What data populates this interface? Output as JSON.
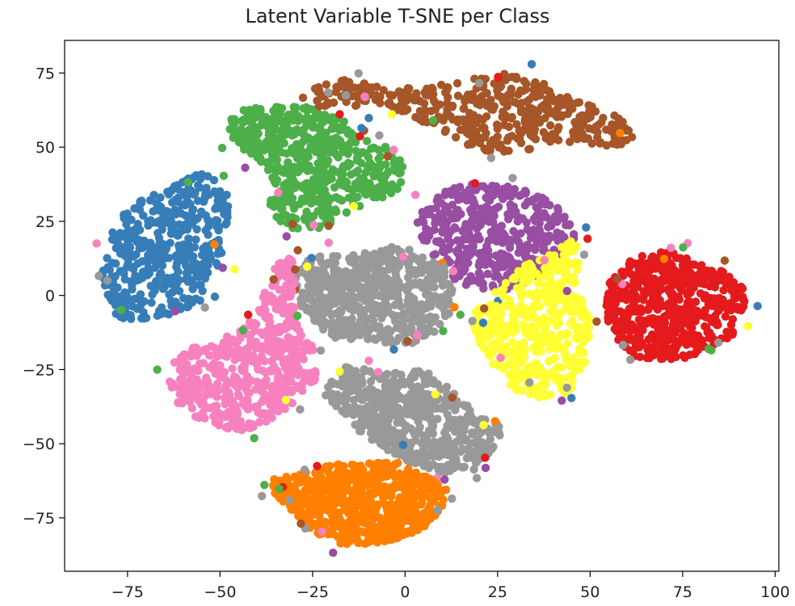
{
  "chart_data": {
    "type": "scatter",
    "title": "Latent Variable T-SNE per Class",
    "xlabel": "",
    "ylabel": "",
    "xlim": [
      -92,
      101
    ],
    "ylim": [
      -93,
      86
    ],
    "xticks": [
      -75,
      -50,
      -25,
      0,
      25,
      50,
      75,
      100
    ],
    "xtick_labels": [
      "−75",
      "−50",
      "−25",
      "0",
      "25",
      "50",
      "75",
      "100"
    ],
    "yticks": [
      75,
      50,
      25,
      0,
      -25,
      -50,
      -75
    ],
    "ytick_labels": [
      "75",
      "50",
      "25",
      "0",
      "−25",
      "−50",
      "−75"
    ],
    "grid": false,
    "legend": "none",
    "clusters": [
      {
        "color": "#377eb8",
        "points_approx": 450,
        "polygon": [
          [
            -79,
            -6
          ],
          [
            -82,
            6
          ],
          [
            -80,
            20
          ],
          [
            -76,
            29
          ],
          [
            -70,
            33
          ],
          [
            -64,
            36
          ],
          [
            -58,
            40
          ],
          [
            -53,
            43
          ],
          [
            -50,
            36
          ],
          [
            -47,
            29
          ],
          [
            -49,
            20
          ],
          [
            -50,
            10
          ],
          [
            -54,
            3
          ],
          [
            -57,
            -3
          ],
          [
            -62,
            -6
          ],
          [
            -70,
            -8
          ],
          [
            -76,
            -8
          ]
        ]
      },
      {
        "color": "#4daf4a",
        "points_approx": 550,
        "polygon": [
          [
            -48,
            58
          ],
          [
            -44,
            64
          ],
          [
            -37,
            63
          ],
          [
            -30,
            65
          ],
          [
            -23,
            63
          ],
          [
            -17,
            60
          ],
          [
            -13,
            53
          ],
          [
            -6,
            51
          ],
          [
            -1,
            46
          ],
          [
            0,
            38
          ],
          [
            -4,
            34
          ],
          [
            -12,
            30
          ],
          [
            -20,
            24
          ],
          [
            -27,
            21
          ],
          [
            -33,
            24
          ],
          [
            -37,
            28
          ],
          [
            -36,
            38
          ],
          [
            -40,
            46
          ],
          [
            -46,
            51
          ]
        ]
      },
      {
        "color": "#a65628",
        "points_approx": 450,
        "polygon": [
          [
            -24,
            70
          ],
          [
            -17,
            73
          ],
          [
            -9,
            71
          ],
          [
            0,
            70
          ],
          [
            8,
            72
          ],
          [
            18,
            73
          ],
          [
            27,
            75
          ],
          [
            34,
            74
          ],
          [
            42,
            68
          ],
          [
            50,
            64
          ],
          [
            58,
            60
          ],
          [
            62,
            54
          ],
          [
            58,
            50
          ],
          [
            50,
            51
          ],
          [
            42,
            52
          ],
          [
            33,
            49
          ],
          [
            24,
            48
          ],
          [
            16,
            51
          ],
          [
            8,
            57
          ],
          [
            0,
            61
          ],
          [
            -7,
            63
          ],
          [
            -15,
            64
          ],
          [
            -23,
            63
          ],
          [
            -28,
            67
          ]
        ]
      },
      {
        "color": "#984ea3",
        "points_approx": 450,
        "polygon": [
          [
            3,
            25
          ],
          [
            6,
            31
          ],
          [
            12,
            36
          ],
          [
            20,
            38
          ],
          [
            28,
            37
          ],
          [
            36,
            34
          ],
          [
            44,
            28
          ],
          [
            46,
            20
          ],
          [
            42,
            12
          ],
          [
            36,
            6
          ],
          [
            29,
            2
          ],
          [
            22,
            2
          ],
          [
            15,
            4
          ],
          [
            10,
            9
          ],
          [
            6,
            15
          ]
        ]
      },
      {
        "color": "#ffff33",
        "points_approx": 450,
        "polygon": [
          [
            22,
            -2
          ],
          [
            26,
            4
          ],
          [
            33,
            11
          ],
          [
            40,
            15
          ],
          [
            46,
            19
          ],
          [
            48,
            12
          ],
          [
            46,
            3
          ],
          [
            50,
            -6
          ],
          [
            50,
            -16
          ],
          [
            48,
            -26
          ],
          [
            44,
            -33
          ],
          [
            38,
            -35
          ],
          [
            31,
            -33
          ],
          [
            26,
            -28
          ],
          [
            22,
            -20
          ],
          [
            18,
            -12
          ],
          [
            19,
            -5
          ]
        ]
      },
      {
        "color": "#e41a1c",
        "points_approx": 550,
        "polygon": [
          [
            55,
            4
          ],
          [
            60,
            12
          ],
          [
            68,
            15
          ],
          [
            74,
            14
          ],
          [
            80,
            11
          ],
          [
            86,
            8
          ],
          [
            91,
            4
          ],
          [
            92,
            -4
          ],
          [
            90,
            -12
          ],
          [
            84,
            -18
          ],
          [
            76,
            -21
          ],
          [
            68,
            -22
          ],
          [
            60,
            -20
          ],
          [
            56,
            -13
          ],
          [
            54,
            -5
          ]
        ]
      },
      {
        "color": "#999999",
        "points_approx": 600,
        "polygon": [
          [
            -33,
            6
          ],
          [
            -27,
            12
          ],
          [
            -20,
            14
          ],
          [
            -12,
            14
          ],
          [
            -4,
            17
          ],
          [
            3,
            15
          ],
          [
            10,
            11
          ],
          [
            13,
            4
          ],
          [
            12,
            -6
          ],
          [
            8,
            -12
          ],
          [
            3,
            -16
          ],
          [
            -4,
            -16
          ],
          [
            -12,
            -16
          ],
          [
            -20,
            -14
          ],
          [
            -26,
            -8
          ],
          [
            -30,
            0
          ]
        ]
      },
      {
        "color": "#999999",
        "points_approx": 550,
        "polygon": [
          [
            -20,
            -28
          ],
          [
            -16,
            -24
          ],
          [
            -8,
            -25
          ],
          [
            0,
            -26
          ],
          [
            6,
            -25
          ],
          [
            12,
            -31
          ],
          [
            16,
            -36
          ],
          [
            22,
            -42
          ],
          [
            27,
            -44
          ],
          [
            24,
            -52
          ],
          [
            18,
            -58
          ],
          [
            10,
            -60
          ],
          [
            4,
            -58
          ],
          [
            -4,
            -53
          ],
          [
            -12,
            -47
          ],
          [
            -16,
            -40
          ],
          [
            -22,
            -34
          ]
        ]
      },
      {
        "color": "#f781bf",
        "points_approx": 550,
        "polygon": [
          [
            -62,
            -20
          ],
          [
            -58,
            -17
          ],
          [
            -50,
            -15
          ],
          [
            -44,
            -11
          ],
          [
            -40,
            -6
          ],
          [
            -38,
            2
          ],
          [
            -35,
            10
          ],
          [
            -32,
            16
          ],
          [
            -29,
            10
          ],
          [
            -30,
            0
          ],
          [
            -29,
            -10
          ],
          [
            -25,
            -16
          ],
          [
            -24,
            -28
          ],
          [
            -30,
            -36
          ],
          [
            -36,
            -42
          ],
          [
            -44,
            -46
          ],
          [
            -52,
            -44
          ],
          [
            -58,
            -40
          ],
          [
            -62,
            -36
          ],
          [
            -64,
            -28
          ]
        ]
      },
      {
        "color": "#ff7f00",
        "points_approx": 650,
        "polygon": [
          [
            -36,
            -62
          ],
          [
            -28,
            -60
          ],
          [
            -20,
            -57
          ],
          [
            -12,
            -57
          ],
          [
            -4,
            -55
          ],
          [
            2,
            -59
          ],
          [
            8,
            -62
          ],
          [
            12,
            -66
          ],
          [
            10,
            -72
          ],
          [
            6,
            -78
          ],
          [
            -2,
            -82
          ],
          [
            -10,
            -84
          ],
          [
            -18,
            -84
          ],
          [
            -24,
            -80
          ],
          [
            -30,
            -74
          ],
          [
            -35,
            -68
          ]
        ]
      }
    ]
  }
}
